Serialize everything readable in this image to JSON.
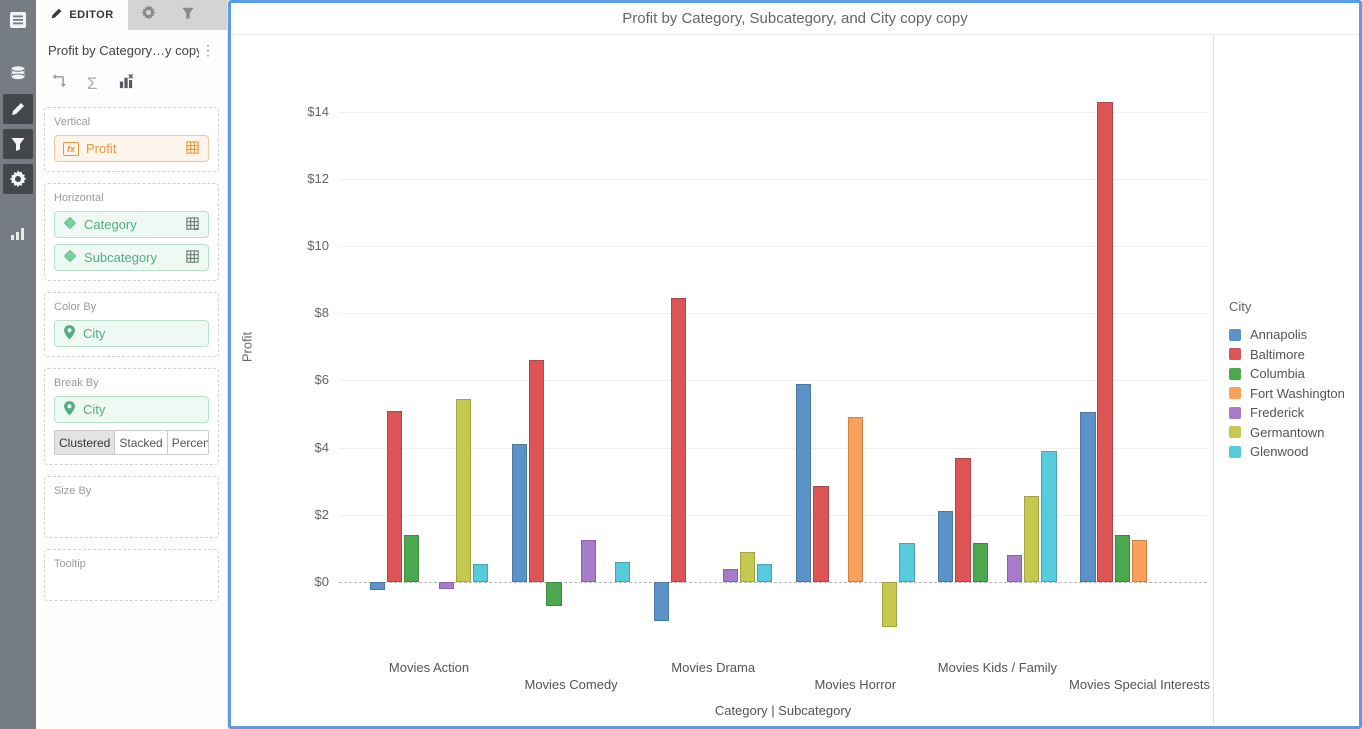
{
  "sidebar": {
    "icons": [
      "list",
      "datasource",
      "pencil",
      "filter",
      "gear",
      "chart"
    ]
  },
  "editor": {
    "tabs": {
      "editor_label": "EDITOR"
    },
    "widget_title": "Profit by Category…y copy",
    "toolbar": {
      "sigma_glyph": "Σ",
      "kebab_glyph": "⋮"
    },
    "sections": {
      "vertical": {
        "label": "Vertical",
        "field": "Profit"
      },
      "horizontal": {
        "label": "Horizontal",
        "field1": "Category",
        "field2": "Subcategory"
      },
      "color_by": {
        "label": "Color By",
        "field": "City"
      },
      "break_by": {
        "label": "Break By",
        "field": "City",
        "modes": [
          "Clustered",
          "Stacked",
          "Percent"
        ],
        "selected_mode": "Clustered"
      },
      "size_by": {
        "label": "Size By"
      },
      "tooltip": {
        "label": "Tooltip"
      }
    }
  },
  "chart": {
    "title": "Profit by Category, Subcategory, and City copy copy"
  },
  "chart_data": {
    "type": "bar",
    "mode": "clustered",
    "title": "Profit by Category, Subcategory, and City copy copy",
    "xlabel": "Category  |  Subcategory",
    "ylabel": "Profit",
    "legend_title": "City",
    "legend_position": "right",
    "grid": true,
    "ylim": [
      -2,
      15
    ],
    "ytick_step": 2,
    "yticks": [
      "$0",
      "$2",
      "$4",
      "$6",
      "$8",
      "$10",
      "$12",
      "$14"
    ],
    "categories": [
      "Movies Action",
      "Movies Comedy",
      "Movies Drama",
      "Movies Horror",
      "Movies Kids / Family",
      "Movies Special Interests"
    ],
    "series": [
      {
        "name": "Annapolis",
        "color": "#5b92c8",
        "values": [
          -0.25,
          4.1,
          -1.15,
          5.9,
          2.1,
          5.05
        ]
      },
      {
        "name": "Baltimore",
        "color": "#dd5455",
        "values": [
          5.1,
          6.6,
          8.45,
          2.85,
          3.7,
          14.3
        ]
      },
      {
        "name": "Columbia",
        "color": "#4ba84e",
        "values": [
          1.4,
          -0.7,
          null,
          null,
          1.15,
          1.4
        ]
      },
      {
        "name": "Fort Washington",
        "color": "#f9a05a",
        "values": [
          null,
          null,
          null,
          4.9,
          null,
          1.25
        ]
      },
      {
        "name": "Frederick",
        "color": "#a77bc9",
        "values": [
          -0.2,
          1.25,
          0.4,
          null,
          0.8,
          null
        ]
      },
      {
        "name": "Germantown",
        "color": "#c5c94f",
        "values": [
          5.45,
          null,
          0.9,
          -1.35,
          2.55,
          null
        ]
      },
      {
        "name": "Glenwood",
        "color": "#57cbdc",
        "values": [
          0.55,
          0.6,
          0.55,
          1.15,
          3.9,
          null
        ]
      }
    ]
  }
}
